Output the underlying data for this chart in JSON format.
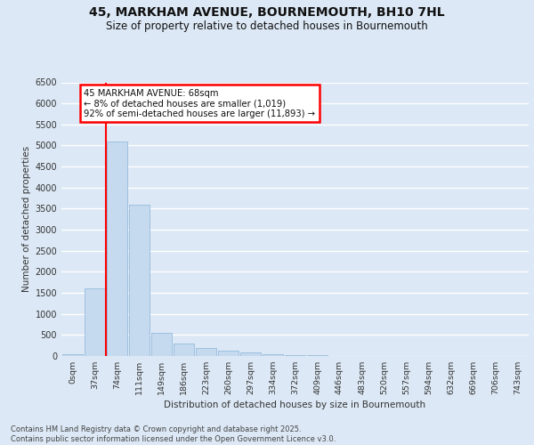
{
  "title_line1": "45, MARKHAM AVENUE, BOURNEMOUTH, BH10 7HL",
  "title_line2": "Size of property relative to detached houses in Bournemouth",
  "xlabel": "Distribution of detached houses by size in Bournemouth",
  "ylabel": "Number of detached properties",
  "bar_color": "#c5d9ef",
  "bar_edge_color": "#8ab4d8",
  "bg_color": "#dce8f5",
  "grid_color": "#ffffff",
  "categories": [
    "0sqm",
    "37sqm",
    "74sqm",
    "111sqm",
    "149sqm",
    "186sqm",
    "223sqm",
    "260sqm",
    "297sqm",
    "334sqm",
    "372sqm",
    "409sqm",
    "446sqm",
    "483sqm",
    "520sqm",
    "557sqm",
    "594sqm",
    "632sqm",
    "669sqm",
    "706sqm",
    "743sqm"
  ],
  "values": [
    45,
    1600,
    5100,
    3600,
    560,
    300,
    195,
    125,
    80,
    48,
    28,
    14,
    7,
    4,
    2,
    1,
    0,
    0,
    0,
    0,
    0
  ],
  "vline_x": 1.5,
  "vline_color": "red",
  "annotation_text": "45 MARKHAM AVENUE: 68sqm\n← 8% of detached houses are smaller (1,019)\n92% of semi-detached houses are larger (11,893) →",
  "annotation_box_fc": "white",
  "annotation_box_ec": "red",
  "ylim_max": 6500,
  "yticks": [
    0,
    500,
    1000,
    1500,
    2000,
    2500,
    3000,
    3500,
    4000,
    4500,
    5000,
    5500,
    6000,
    6500
  ],
  "footer": "Contains HM Land Registry data © Crown copyright and database right 2025.\nContains public sector information licensed under the Open Government Licence v3.0."
}
